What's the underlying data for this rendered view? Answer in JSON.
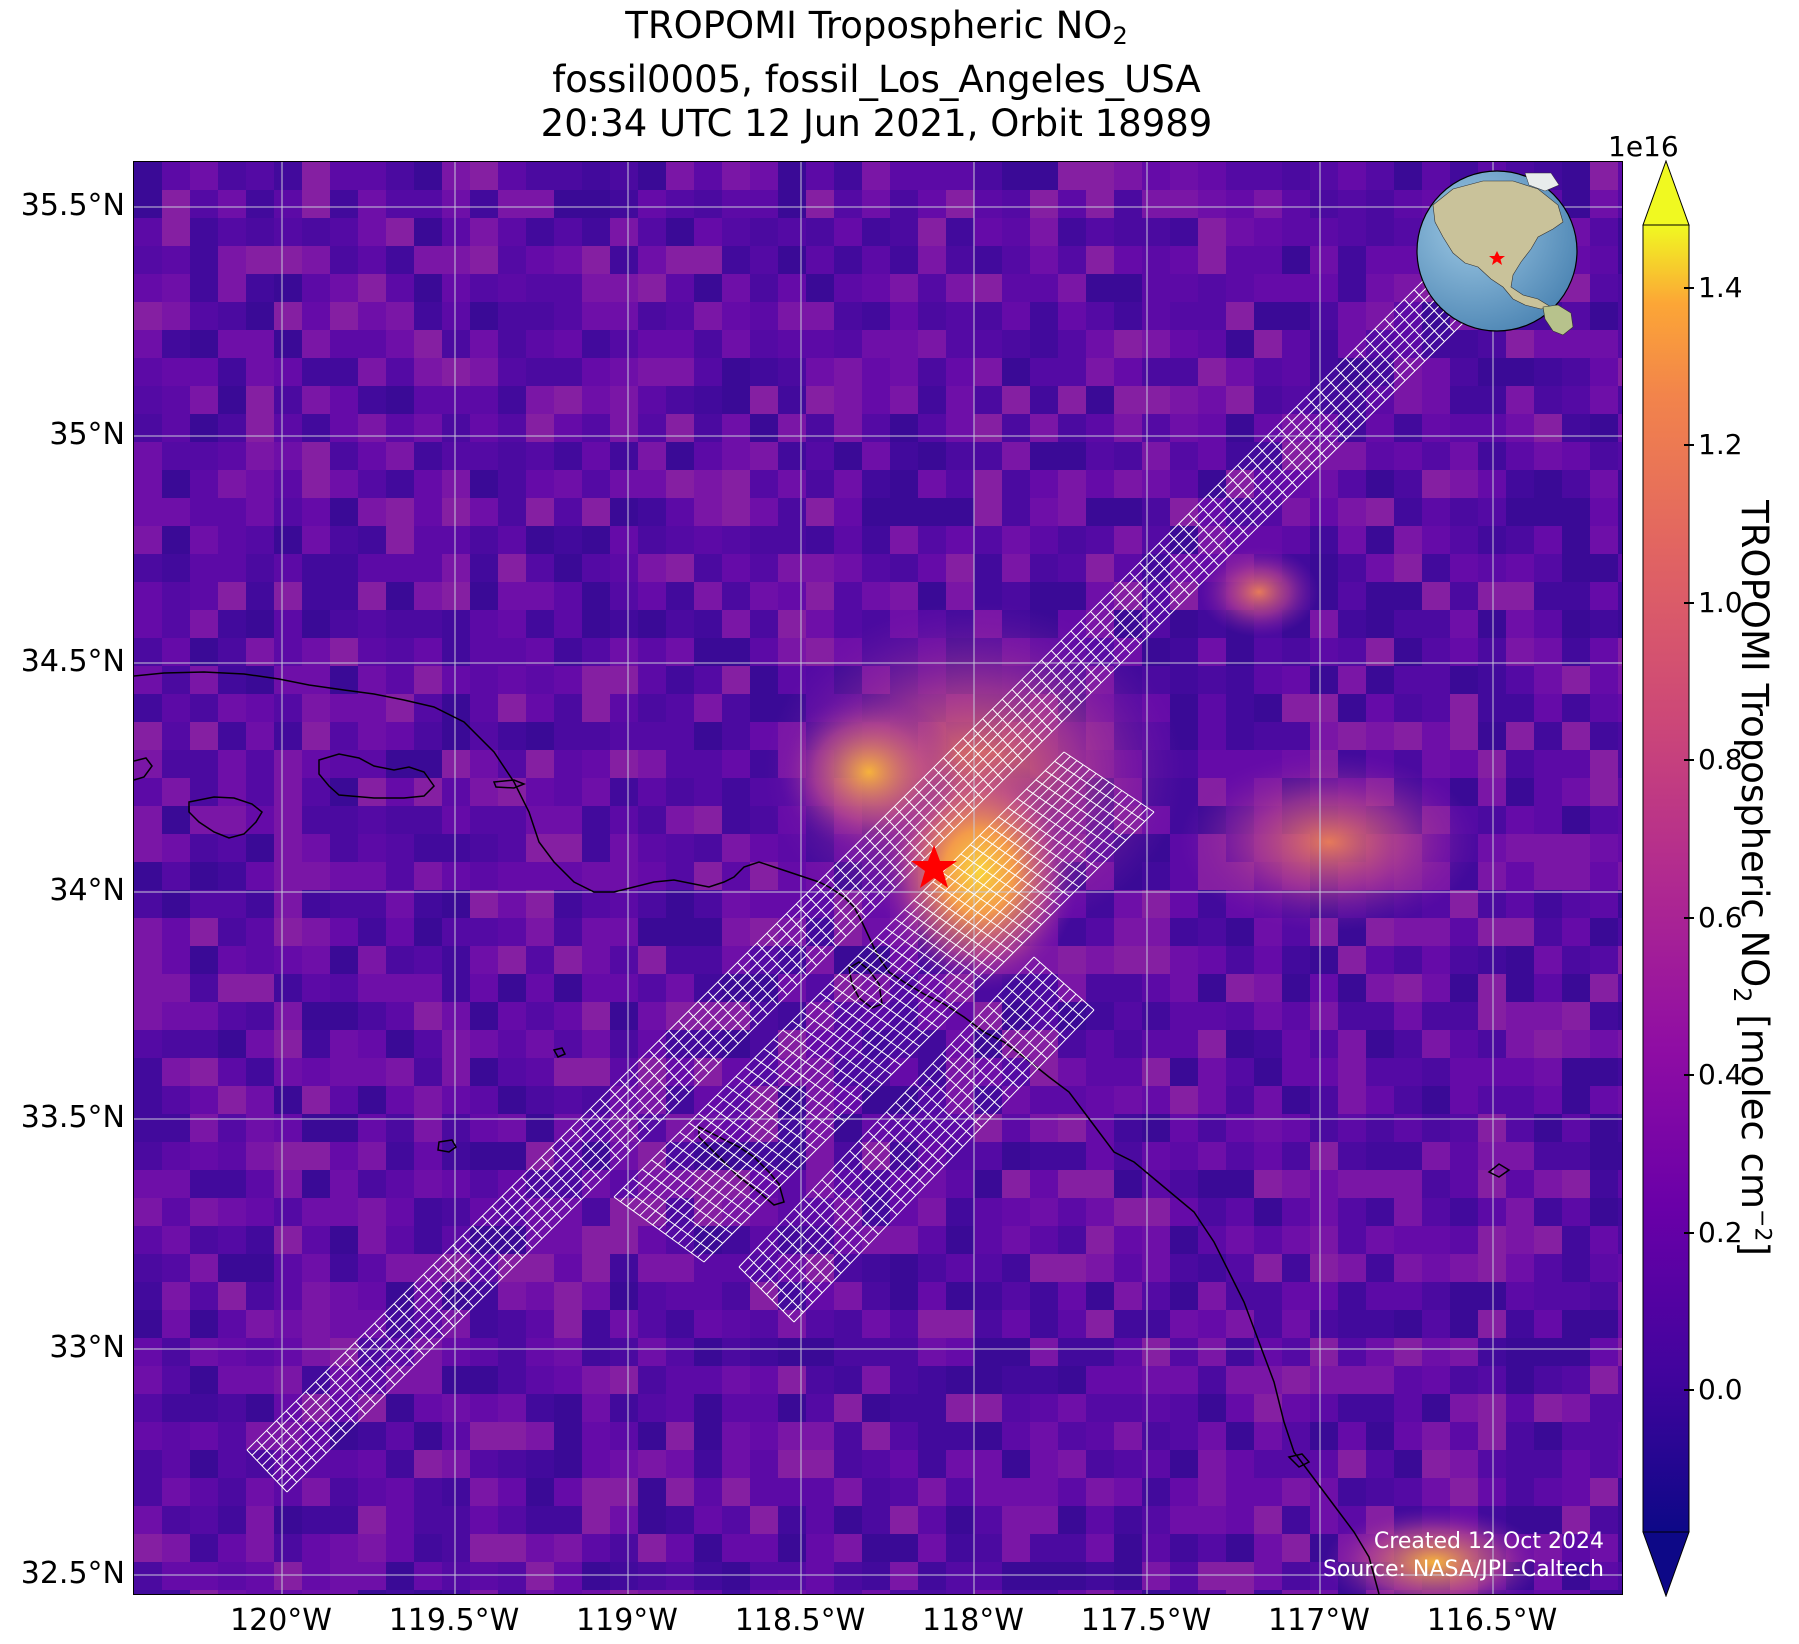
{
  "title": {
    "line1": "TROPOMI Tropospheric NO",
    "line1_sub": "2",
    "line2": "fossil0005, fossil_Los_Angeles_USA",
    "line3": "20:34 UTC 12 Jun 2021, Orbit 18989"
  },
  "map": {
    "lat_labels": [
      "35.5°N",
      "35°N",
      "34.5°N",
      "34°N",
      "33.5°N",
      "33°N",
      "32.5°N"
    ],
    "lon_labels": [
      "120°W",
      "119.5°W",
      "119°W",
      "118.5°W",
      "118°W",
      "117.5°W",
      "117°W",
      "116.5°W"
    ],
    "credit_line1": "Created 12 Oct 2024",
    "credit_line2": "Source: NASA/JPL-Caltech",
    "target_marker": "red-star"
  },
  "colorbar": {
    "exponent": "1e16",
    "ticks": [
      "0.0",
      "0.2",
      "0.4",
      "0.6",
      "0.8",
      "1.0",
      "1.2",
      "1.4"
    ],
    "label_main": "TROPOMI Tropospheric NO",
    "label_sub": "2",
    "label_unit": " [molec cm",
    "label_sup": "−2",
    "label_end": "]",
    "colormap": "plasma",
    "extend": "both"
  },
  "colors": {
    "background_low": "#4b0aa0",
    "hotspot": "#f5c63a",
    "swath_grid": "#ffffff",
    "star": "#ff0000"
  }
}
